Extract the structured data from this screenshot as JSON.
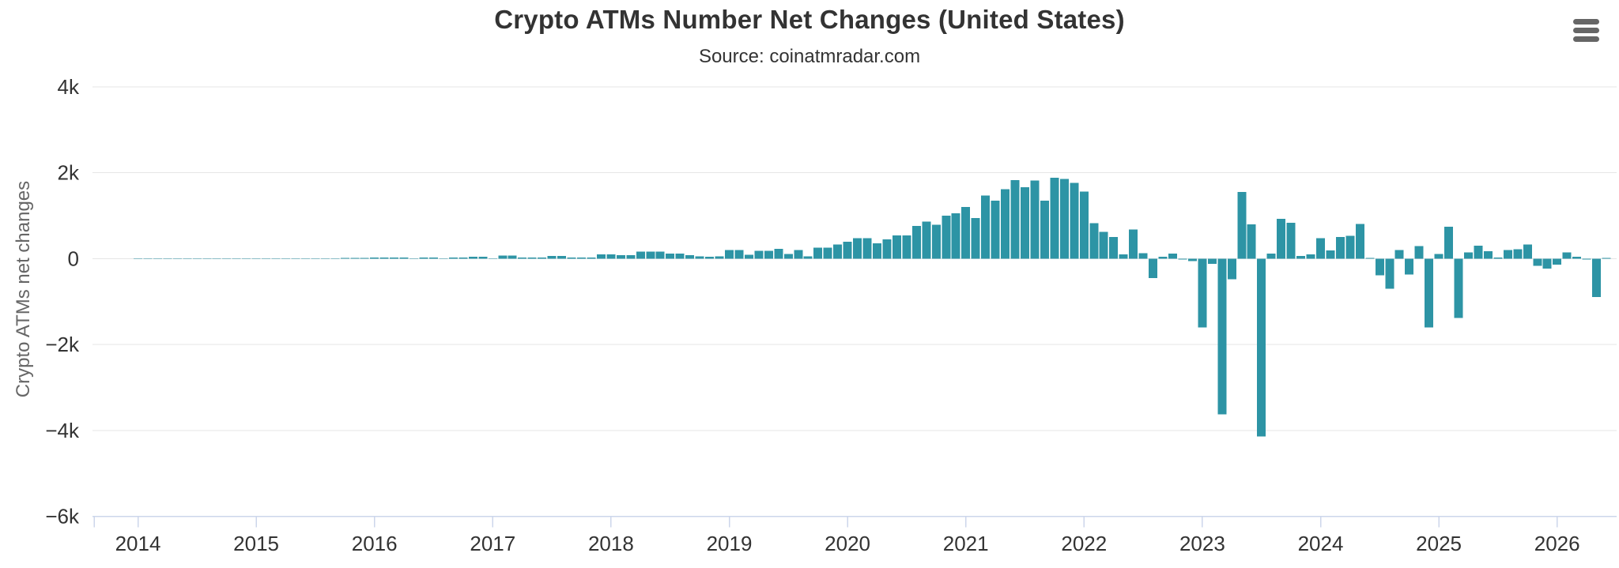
{
  "header": {
    "menu_tooltip": "Chart context menu"
  },
  "chart_data": {
    "type": "bar",
    "title": "Crypto ATMs Number Net Changes (United States)",
    "subtitle": "Source: coinatmradar.com",
    "xlabel": "",
    "ylabel": "Crypto ATMs net changes",
    "legend_position": "none",
    "grid": true,
    "bar_color": "#2D94A5",
    "grid_color": "#E6E6E6",
    "axis_color": "#CCD6EB",
    "label_color": "#333333",
    "ylim": [
      -6000,
      4000
    ],
    "y_ticks": [
      {
        "value": 4000,
        "label": "4k"
      },
      {
        "value": 2000,
        "label": "2k"
      },
      {
        "value": 0,
        "label": "0"
      },
      {
        "value": -2000,
        "label": "-2k"
      },
      {
        "value": -4000,
        "label": "-4k"
      },
      {
        "value": -6000,
        "label": "-6k"
      }
    ],
    "x_ticks": [
      "2014",
      "2015",
      "2016",
      "2017",
      "2018",
      "2019",
      "2020",
      "2021",
      "2022",
      "2023",
      "2024",
      "2025",
      "2026"
    ],
    "series": [
      {
        "name": "Crypto ATMs net changes (United States)",
        "start": "2014-01",
        "interval": "month",
        "values": [
          4,
          3,
          5,
          6,
          3,
          4,
          5,
          4,
          6,
          5,
          7,
          6,
          5,
          6,
          8,
          7,
          9,
          8,
          10,
          9,
          11,
          13,
          16,
          20,
          30,
          30,
          25,
          25,
          5,
          30,
          25,
          5,
          30,
          30,
          45,
          45,
          5,
          70,
          70,
          30,
          30,
          30,
          60,
          60,
          30,
          30,
          30,
          100,
          100,
          80,
          80,
          160,
          160,
          160,
          120,
          120,
          80,
          55,
          40,
          55,
          200,
          200,
          90,
          180,
          180,
          230,
          110,
          200,
          55,
          260,
          260,
          330,
          390,
          480,
          480,
          360,
          450,
          540,
          540,
          760,
          860,
          790,
          1000,
          1060,
          1200,
          950,
          1470,
          1350,
          1620,
          1830,
          1660,
          1820,
          1350,
          1880,
          1860,
          1760,
          1560,
          830,
          620,
          500,
          100,
          680,
          130,
          -450,
          40,
          120,
          -20,
          -60,
          -1600,
          -120,
          -3630,
          -480,
          1550,
          800,
          -4140,
          120,
          930,
          840,
          60,
          100,
          480,
          190,
          500,
          530,
          810,
          20,
          -390,
          -700,
          200,
          -370,
          290,
          -1600,
          110,
          745,
          -1385,
          150,
          300,
          170,
          30,
          200,
          220,
          330,
          -170,
          -230,
          -140,
          150,
          40,
          -20,
          -890,
          20
        ]
      }
    ]
  }
}
